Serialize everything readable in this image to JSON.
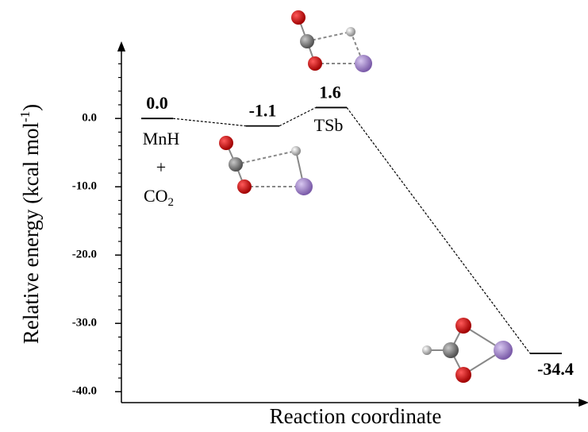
{
  "chart_data": {
    "type": "energy-profile",
    "ylabel": [
      "Relative energy (kcal mol",
      "-1",
      ")"
    ],
    "xlabel": "Reaction coordinate",
    "values": [
      0.0,
      -1.1,
      1.6,
      -34.4
    ],
    "value_labels": [
      "0.0",
      "-1.1",
      "1.6",
      "-34.4"
    ],
    "annotations": {
      "reactant": [
        "MnH",
        "+",
        "CO",
        "2"
      ],
      "transition_state": "TSb"
    },
    "ylim": [
      -41.6,
      10.6
    ],
    "yticks": [
      {
        "value": 0,
        "label": "0.0"
      },
      {
        "value": -10,
        "label": "-10.0"
      },
      {
        "value": -20,
        "label": "-20.0"
      },
      {
        "value": -30,
        "label": "-30.0"
      },
      {
        "value": -40,
        "label": "-40.0"
      }
    ],
    "yminorticks": [
      8,
      6,
      4,
      2,
      -2,
      -4,
      -6,
      -8,
      -12,
      -14,
      -16,
      -18,
      -22,
      -24,
      -26,
      -28,
      -32,
      -34,
      -36,
      -38
    ],
    "color": "#000000"
  }
}
